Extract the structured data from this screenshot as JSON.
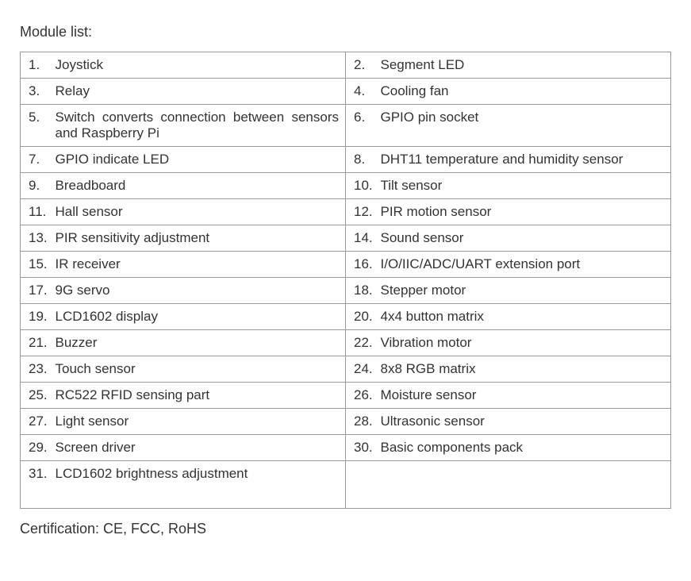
{
  "header": "Module list:",
  "footer": "Certification: CE, FCC, RoHS",
  "rows": [
    {
      "leftNum": "1.",
      "leftText": "Joystick",
      "rightNum": "2.",
      "rightText": "Segment LED"
    },
    {
      "leftNum": "3.",
      "leftText": "Relay",
      "rightNum": "4.",
      "rightText": "Cooling fan"
    },
    {
      "leftNum": "5.",
      "leftText": "Switch converts connection between sensors and Raspberry Pi",
      "rightNum": "6.",
      "rightText": "GPIO pin socket",
      "leftJustify": true
    },
    {
      "leftNum": "7.",
      "leftText": "GPIO indicate LED",
      "rightNum": "8.",
      "rightText": "DHT11 temperature and humidity sensor",
      "rightJustify": true
    },
    {
      "leftNum": "9.",
      "leftText": "Breadboard",
      "rightNum": "10.",
      "rightText": "Tilt sensor"
    },
    {
      "leftNum": "11.",
      "leftText": "Hall sensor",
      "rightNum": "12.",
      "rightText": "PIR motion sensor"
    },
    {
      "leftNum": "13.",
      "leftText": "PIR sensitivity adjustment",
      "rightNum": "14.",
      "rightText": "Sound sensor"
    },
    {
      "leftNum": "15.",
      "leftText": "IR receiver",
      "rightNum": "16.",
      "rightText": "I/O/IIC/ADC/UART extension port"
    },
    {
      "leftNum": "17.",
      "leftText": "9G servo",
      "rightNum": "18.",
      "rightText": "Stepper motor"
    },
    {
      "leftNum": "19.",
      "leftText": "LCD1602 display",
      "rightNum": "20.",
      "rightText": "4x4 button matrix"
    },
    {
      "leftNum": "21.",
      "leftText": "Buzzer",
      "rightNum": "22.",
      "rightText": "Vibration motor"
    },
    {
      "leftNum": "23.",
      "leftText": "Touch sensor",
      "rightNum": "24.",
      "rightText": "8x8 RGB matrix"
    },
    {
      "leftNum": "25.",
      "leftText": "RC522 RFID sensing part",
      "rightNum": "26.",
      "rightText": "Moisture sensor"
    },
    {
      "leftNum": "27.",
      "leftText": "Light sensor",
      "rightNum": "28.",
      "rightText": "Ultrasonic sensor"
    },
    {
      "leftNum": "29.",
      "leftText": "Screen driver",
      "rightNum": "30.",
      "rightText": "Basic components pack"
    },
    {
      "leftNum": "31.",
      "leftText": "LCD1602 brightness adjustment",
      "rightNum": "",
      "rightText": "",
      "lastTall": true
    }
  ],
  "table_style": {
    "border_color": "#999999",
    "background_color": "#ffffff",
    "text_color": "#333333",
    "font_size": 17,
    "num_col_width": 44
  }
}
